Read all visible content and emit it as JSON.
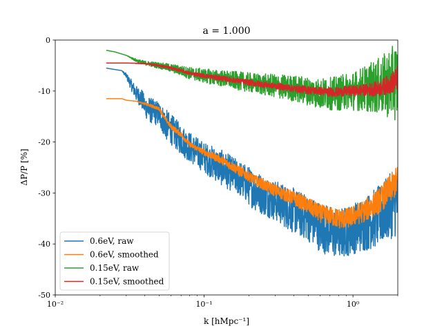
{
  "chart_data": {
    "type": "line",
    "title": "a = 1.000",
    "xlabel": "k [hMpc⁻¹]",
    "ylabel": "ΔP/P [%]",
    "xscale": "log",
    "xlim": [
      0.01,
      2.0
    ],
    "ylim": [
      -50,
      0
    ],
    "x_ticks": [
      0.01,
      0.1,
      1
    ],
    "x_tick_labels": [
      "10⁻²",
      "10⁻¹",
      "10⁰"
    ],
    "y_ticks": [
      0,
      -10,
      -20,
      -30,
      -40,
      -50
    ],
    "y_tick_labels": [
      "0",
      "-10",
      "-20",
      "-30",
      "-40",
      "-50"
    ],
    "grid": false,
    "legend_position": "lower-left",
    "series": [
      {
        "name": "0.6eV, raw",
        "color": "#1f77b4",
        "noisy": true,
        "x": [
          0.022,
          0.028,
          0.03,
          0.032,
          0.035,
          0.038,
          0.04,
          0.042,
          0.045,
          0.05,
          0.055,
          0.06,
          0.07,
          0.08,
          0.1,
          0.13,
          0.17,
          0.22,
          0.3,
          0.4,
          0.5,
          0.6,
          0.7,
          0.8,
          0.9,
          1.0,
          1.2,
          1.5,
          1.8,
          2.0
        ],
        "y": [
          -5.5,
          -6.0,
          -7.0,
          -8.5,
          -10.5,
          -11.5,
          -13.0,
          -13.5,
          -14.0,
          -14.5,
          -16.5,
          -17.5,
          -19.5,
          -21.0,
          -23.0,
          -25.0,
          -27.0,
          -29.5,
          -31.5,
          -33.5,
          -35.0,
          -36.5,
          -37.5,
          -38.0,
          -37.5,
          -37.0,
          -36.0,
          -34.5,
          -32.5,
          -31.5
        ],
        "noise": [
          0,
          0,
          0.5,
          1.0,
          1.5,
          2.0,
          2.0,
          2.5,
          2.5,
          2.5,
          3.0,
          3.0,
          3.0,
          3.0,
          3.0,
          3.5,
          3.5,
          4.0,
          4.0,
          4.5,
          4.5,
          5.0,
          5.0,
          5.0,
          5.0,
          5.0,
          5.5,
          6.0,
          6.5,
          7.0
        ]
      },
      {
        "name": "0.6eV, smoothed",
        "color": "#ff7f0e",
        "noisy": true,
        "x": [
          0.022,
          0.028,
          0.03,
          0.035,
          0.04,
          0.045,
          0.05,
          0.055,
          0.06,
          0.07,
          0.08,
          0.1,
          0.13,
          0.17,
          0.22,
          0.3,
          0.4,
          0.5,
          0.6,
          0.7,
          0.8,
          0.9,
          1.0,
          1.2,
          1.5,
          1.8,
          2.0
        ],
        "y": [
          -11.5,
          -11.5,
          -11.8,
          -12.0,
          -12.5,
          -13.0,
          -13.5,
          -15.5,
          -17.0,
          -18.5,
          -20.5,
          -22.0,
          -23.5,
          -25.5,
          -27.5,
          -29.5,
          -31.0,
          -32.5,
          -34.0,
          -34.5,
          -35.0,
          -35.0,
          -34.5,
          -33.5,
          -31.5,
          -29.0,
          -27.5
        ],
        "noise": [
          0,
          0,
          0,
          0,
          0.2,
          0.3,
          0.3,
          0.4,
          0.5,
          0.5,
          0.5,
          0.6,
          0.8,
          1.0,
          1.0,
          1.2,
          1.4,
          1.6,
          1.8,
          1.8,
          2.0,
          2.0,
          2.0,
          2.2,
          2.5,
          2.8,
          3.0
        ]
      },
      {
        "name": "0.15eV, raw",
        "color": "#2ca02c",
        "noisy": true,
        "x": [
          0.022,
          0.025,
          0.03,
          0.035,
          0.04,
          0.05,
          0.06,
          0.07,
          0.08,
          0.1,
          0.13,
          0.17,
          0.22,
          0.3,
          0.4,
          0.5,
          0.6,
          0.7,
          0.8,
          0.9,
          1.0,
          1.2,
          1.5,
          1.8,
          2.0
        ],
        "y": [
          -2.0,
          -2.3,
          -3.0,
          -4.0,
          -4.5,
          -5.0,
          -5.5,
          -6.0,
          -6.5,
          -7.0,
          -7.5,
          -8.0,
          -8.5,
          -9.0,
          -9.5,
          -10.0,
          -10.5,
          -10.5,
          -10.5,
          -10.0,
          -10.0,
          -9.5,
          -9.0,
          -8.5,
          -8.0
        ],
        "noise": [
          0,
          0,
          0,
          0.3,
          0.4,
          0.6,
          0.8,
          1.0,
          1.2,
          1.4,
          1.6,
          1.8,
          2.0,
          2.3,
          2.6,
          2.8,
          3.0,
          3.2,
          3.4,
          3.6,
          3.8,
          4.5,
          5.5,
          7.0,
          8.0
        ]
      },
      {
        "name": "0.15eV, smoothed",
        "color": "#d62728",
        "noisy": true,
        "x": [
          0.022,
          0.03,
          0.04,
          0.05,
          0.06,
          0.07,
          0.08,
          0.1,
          0.13,
          0.17,
          0.22,
          0.3,
          0.4,
          0.5,
          0.6,
          0.7,
          0.8,
          0.9,
          1.0,
          1.2,
          1.5,
          1.8,
          2.0
        ],
        "y": [
          -4.5,
          -4.5,
          -4.6,
          -5.0,
          -5.5,
          -6.0,
          -6.5,
          -7.0,
          -7.5,
          -8.0,
          -8.5,
          -9.0,
          -9.5,
          -9.8,
          -10.0,
          -10.2,
          -10.2,
          -10.0,
          -10.0,
          -9.8,
          -9.5,
          -8.5,
          -7.5
        ],
        "noise": [
          0,
          0,
          0.1,
          0.2,
          0.3,
          0.3,
          0.3,
          0.4,
          0.5,
          0.5,
          0.6,
          0.6,
          0.7,
          0.8,
          0.8,
          0.9,
          0.9,
          1.0,
          1.0,
          1.2,
          1.5,
          2.0,
          2.5
        ]
      }
    ]
  }
}
